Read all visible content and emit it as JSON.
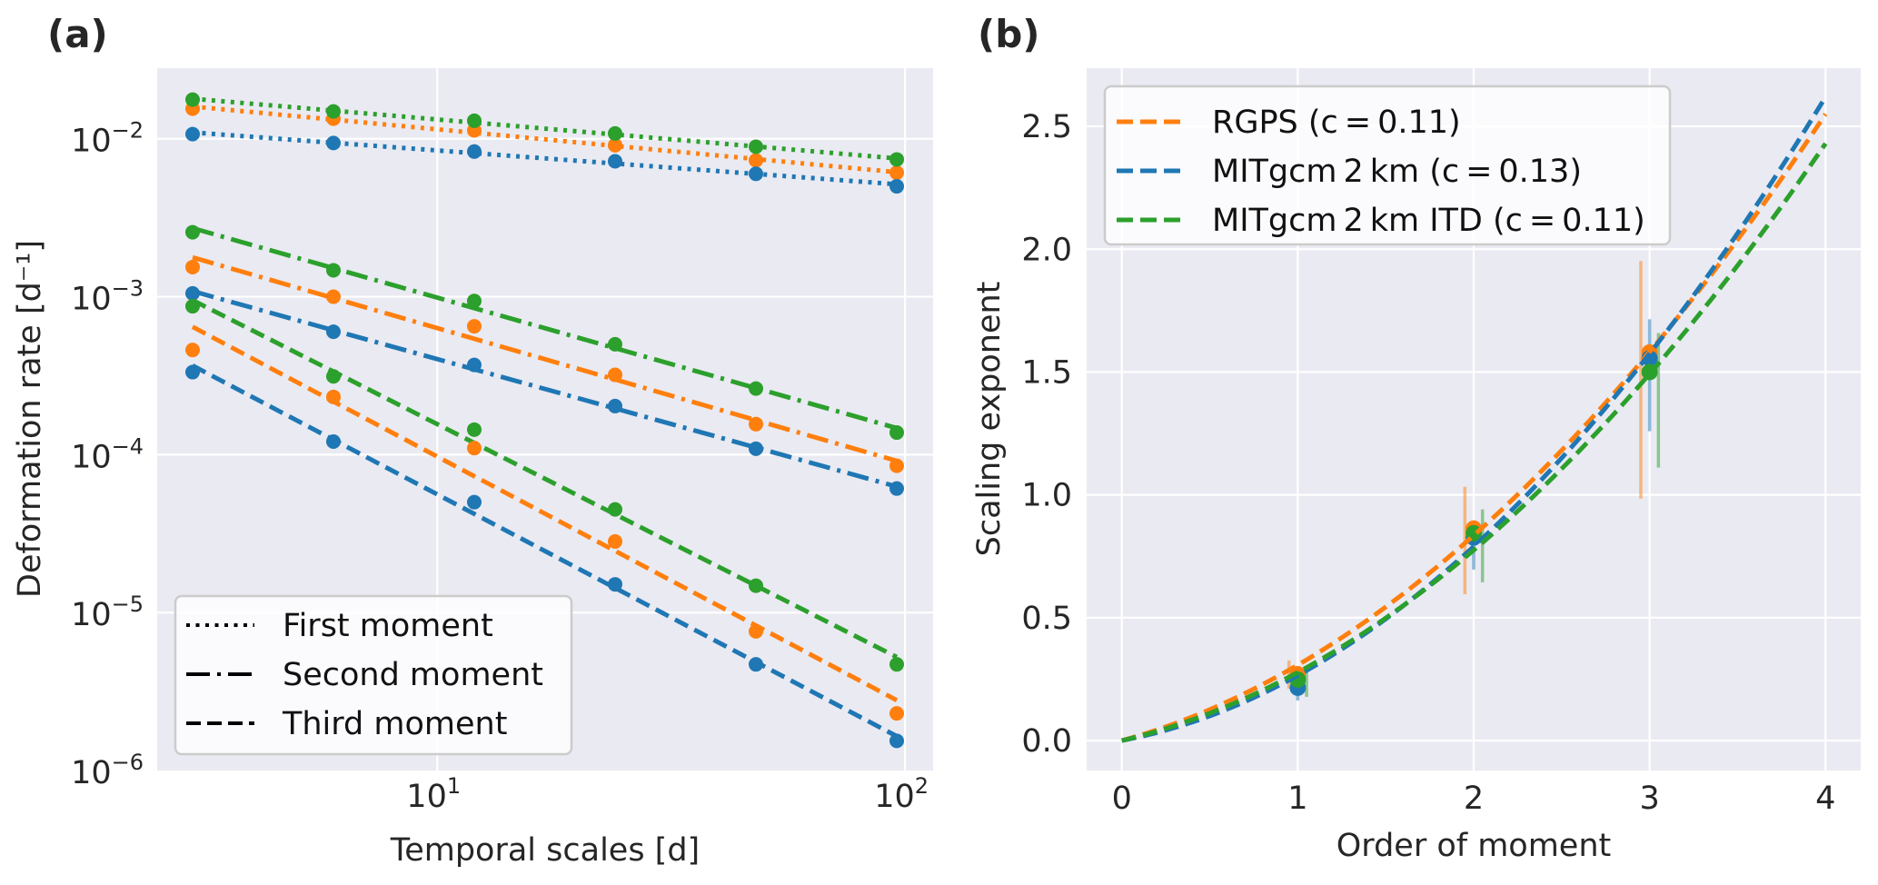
{
  "colors": {
    "rgps": "#ff7f0e",
    "mitgcm": "#1f77b4",
    "mitgcm_itd": "#2ca02c",
    "black": "#000000"
  },
  "chart_data": [
    {
      "id": "a",
      "type": "line",
      "panel_label": "(a)",
      "title": "",
      "xlabel": "Temporal scales [d]",
      "ylabel": "Deformation rate [d⁻¹]",
      "xscale": "log",
      "yscale": "log",
      "xlim": [
        2.52,
        114.8
      ],
      "ylim": [
        1e-06,
        0.028
      ],
      "grid": true,
      "x_ticks": [
        {
          "value": 10,
          "base": "10",
          "exp": "1"
        },
        {
          "value": 100,
          "base": "10",
          "exp": "2"
        }
      ],
      "y_ticks": [
        {
          "value": 0.01,
          "base": "10",
          "exp": "−2"
        },
        {
          "value": 0.001,
          "base": "10",
          "exp": "−3"
        },
        {
          "value": 0.0001,
          "base": "10",
          "exp": "−4"
        },
        {
          "value": 1e-05,
          "base": "10",
          "exp": "−5"
        },
        {
          "value": 1e-06,
          "base": "10",
          "exp": "−6"
        }
      ],
      "x": [
        3,
        6,
        12,
        24,
        48,
        96
      ],
      "series": [
        {
          "name": "RGPS first moment",
          "dataset": "RGPS",
          "moment": 1,
          "color_key": "rgps",
          "style": "dotted",
          "values": [
            0.0155,
            0.0134,
            0.0113,
            0.0091,
            0.0073,
            0.0061
          ]
        },
        {
          "name": "MITgcm 2km first moment",
          "dataset": "MITgcm 2km",
          "moment": 1,
          "color_key": "mitgcm",
          "style": "dotted",
          "values": [
            0.0107,
            0.0094,
            0.0083,
            0.0072,
            0.006,
            0.005
          ]
        },
        {
          "name": "MITgcm 2km ITD first moment",
          "dataset": "MITgcm 2km ITD",
          "moment": 1,
          "color_key": "mitgcm_itd",
          "style": "dotted",
          "values": [
            0.0177,
            0.0149,
            0.013,
            0.0108,
            0.0089,
            0.0074
          ]
        },
        {
          "name": "RGPS second moment",
          "dataset": "RGPS",
          "moment": 2,
          "color_key": "rgps",
          "style": "dashdot",
          "values": [
            0.00154,
            0.001,
            0.00065,
            0.00032,
            0.000156,
            8.5e-05
          ]
        },
        {
          "name": "MITgcm 2km second moment",
          "dataset": "MITgcm 2km",
          "moment": 2,
          "color_key": "mitgcm",
          "style": "dashdot",
          "values": [
            0.00105,
            0.0006,
            0.00037,
            0.000203,
            0.000109,
            6.1e-05
          ]
        },
        {
          "name": "MITgcm 2km ITD second moment",
          "dataset": "MITgcm 2km ITD",
          "moment": 2,
          "color_key": "mitgcm_itd",
          "style": "dashdot",
          "values": [
            0.00256,
            0.00147,
            0.00094,
            0.0005,
            0.000262,
            0.000138
          ]
        },
        {
          "name": "RGPS third moment",
          "dataset": "RGPS",
          "moment": 3,
          "color_key": "rgps",
          "style": "dashed",
          "values": [
            0.00046,
            0.000232,
            0.00011,
            2.82e-05,
            7.6e-06,
            2.3e-06
          ]
        },
        {
          "name": "MITgcm 2km third moment",
          "dataset": "MITgcm 2km",
          "moment": 3,
          "color_key": "mitgcm",
          "style": "dashed",
          "values": [
            0.000333,
            0.000121,
            5e-05,
            1.51e-05,
            4.7e-06,
            1.54e-06
          ]
        },
        {
          "name": "MITgcm 2km ITD third moment",
          "dataset": "MITgcm 2km ITD",
          "moment": 3,
          "color_key": "mitgcm_itd",
          "style": "dashed",
          "values": [
            0.00087,
            0.000313,
            0.000144,
            4.5e-05,
            1.48e-05,
            4.7e-06
          ]
        }
      ],
      "fit_lines": "power-law least-squares fit per series, drawn with series line style",
      "legend": {
        "position": "lower-left",
        "entries": [
          {
            "label": "First moment",
            "style": "dotted"
          },
          {
            "label": "Second moment",
            "style": "dashdot"
          },
          {
            "label": "Third moment",
            "style": "dashed"
          }
        ]
      }
    },
    {
      "id": "b",
      "type": "line",
      "panel_label": "(b)",
      "title": "",
      "xlabel": "Order of moment",
      "ylabel": "Scaling exponent",
      "xlim": [
        -0.2,
        4.2
      ],
      "ylim": [
        -0.122,
        2.737
      ],
      "grid": true,
      "x_ticks": [
        0,
        1,
        2,
        3,
        4
      ],
      "y_ticks": [
        0.0,
        0.5,
        1.0,
        1.5,
        2.0,
        2.5
      ],
      "y_tick_labels": [
        "0.0",
        "0.5",
        "1.0",
        "1.5",
        "2.0",
        "2.5"
      ],
      "curves": [
        {
          "name": "RGPS (c = 0.11)",
          "color_key": "rgps",
          "style": "dashed",
          "model": "a*q + c*q^2",
          "a": 0.1975,
          "c": 0.11,
          "q_range": [
            0,
            4
          ]
        },
        {
          "name": "MITgcm 2 km (c = 0.13)",
          "color_key": "mitgcm",
          "style": "dashed",
          "model": "a*q + c*q^2",
          "a": 0.135,
          "c": 0.13,
          "q_range": [
            0,
            4
          ]
        },
        {
          "name": "MITgcm 2 km ITD (c = 0.11)",
          "color_key": "mitgcm_itd",
          "style": "dashed",
          "model": "a*q + c*q^2",
          "a": 0.1675,
          "c": 0.11,
          "q_range": [
            0,
            4
          ]
        }
      ],
      "points": [
        {
          "dataset": "RGPS",
          "color_key": "rgps",
          "x_offset": -0.05,
          "q": [
            1,
            2,
            3
          ],
          "values": [
            0.27,
            0.863,
            1.58
          ],
          "err_low": [
            0.211,
            0.596,
            0.985
          ],
          "err_high": [
            0.326,
            1.033,
            1.952
          ]
        },
        {
          "dataset": "MITgcm 2km",
          "color_key": "mitgcm",
          "x_offset": 0.0,
          "q": [
            1,
            2,
            3
          ],
          "values": [
            0.215,
            0.826,
            1.556
          ],
          "err_low": [
            0.163,
            0.696,
            1.259
          ],
          "err_high": [
            0.27,
            0.889,
            1.715
          ]
        },
        {
          "dataset": "MITgcm 2km ITD",
          "color_key": "mitgcm_itd",
          "x_offset": 0.05,
          "q": [
            1,
            2,
            3
          ],
          "values": [
            0.248,
            0.844,
            1.5
          ],
          "err_low": [
            0.178,
            0.644,
            1.111
          ],
          "err_high": [
            0.285,
            0.941,
            1.659
          ]
        }
      ],
      "legend": {
        "position": "top-left",
        "entries": [
          {
            "label": "RGPS (c = 0.11)",
            "color_key": "rgps"
          },
          {
            "label": "MITgcm 2 km (c = 0.13)",
            "color_key": "mitgcm"
          },
          {
            "label": "MITgcm 2 km ITD (c = 0.11)",
            "color_key": "mitgcm_itd"
          }
        ]
      }
    }
  ]
}
